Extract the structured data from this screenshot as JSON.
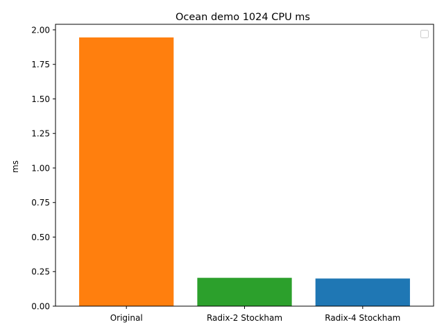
{
  "chart_data": {
    "type": "bar",
    "title": "Ocean demo 1024 CPU ms",
    "xlabel": "",
    "ylabel": "ms",
    "categories": [
      "Original",
      "Radix-2 Stockham",
      "Radix-4 Stockham"
    ],
    "values": [
      1.945,
      0.205,
      0.2
    ],
    "bar_colors": [
      "#ff7f0e",
      "#2ca02c",
      "#1f77b4"
    ],
    "ylim": [
      0,
      2.04
    ],
    "yticks": [
      "0.00",
      "0.25",
      "0.50",
      "0.75",
      "1.00",
      "1.25",
      "1.50",
      "1.75",
      "2.00"
    ],
    "ytick_values": [
      0,
      0.25,
      0.5,
      0.75,
      1.0,
      1.25,
      1.5,
      1.75,
      2.0
    ],
    "grid": false,
    "legend": {
      "placement": "top-right",
      "entries": []
    }
  }
}
